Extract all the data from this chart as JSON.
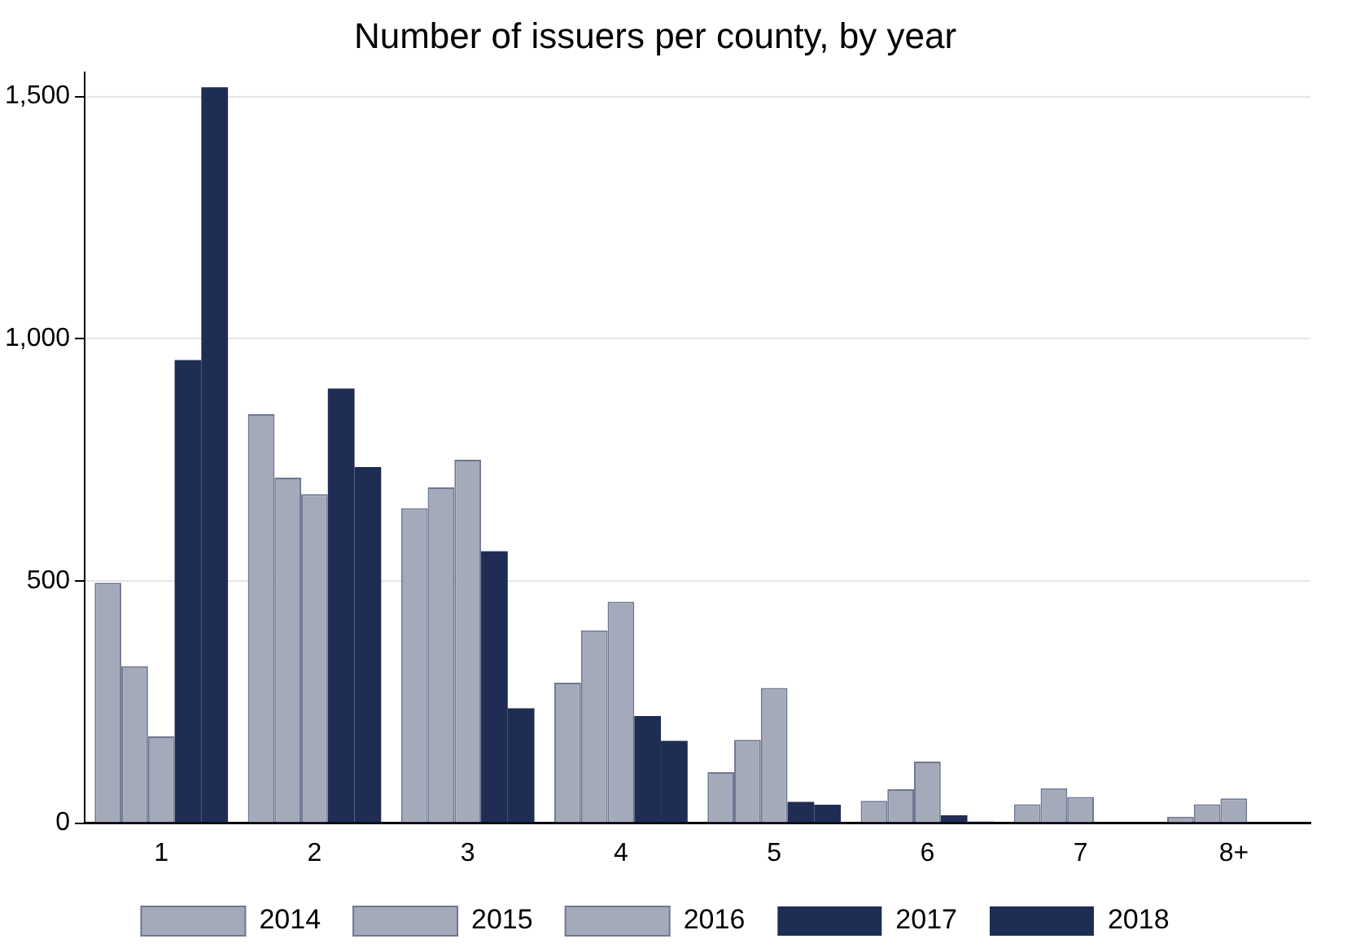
{
  "chart_data": {
    "type": "bar",
    "title": "Number of issuers per county, by year",
    "categories": [
      "1",
      "2",
      "3",
      "4",
      "5",
      "6",
      "7",
      "8+"
    ],
    "series": [
      {
        "name": "2014",
        "color": "#a5aaba",
        "values": [
          496,
          844,
          650,
          290,
          105,
          46,
          39,
          13
        ]
      },
      {
        "name": "2015",
        "color": "#a5aaba",
        "values": [
          324,
          713,
          693,
          398,
          172,
          70,
          72,
          39
        ]
      },
      {
        "name": "2016",
        "color": "#a5aaba",
        "values": [
          179,
          679,
          750,
          457,
          279,
          127,
          54,
          51
        ]
      },
      {
        "name": "2017",
        "color": "#1f2d55",
        "values": [
          956,
          897,
          561,
          221,
          44,
          16,
          2,
          2
        ]
      },
      {
        "name": "2018",
        "color": "#1f2d55",
        "values": [
          1519,
          735,
          237,
          170,
          38,
          3,
          2,
          0
        ]
      }
    ],
    "ylim": [
      0,
      1550
    ],
    "yticks": [
      {
        "value": 0,
        "label": "0"
      },
      {
        "value": 500,
        "label": "500"
      },
      {
        "value": 1000,
        "label": "1,000"
      },
      {
        "value": 1500,
        "label": "1,500"
      }
    ],
    "grid": "y",
    "legend": "bottom"
  }
}
